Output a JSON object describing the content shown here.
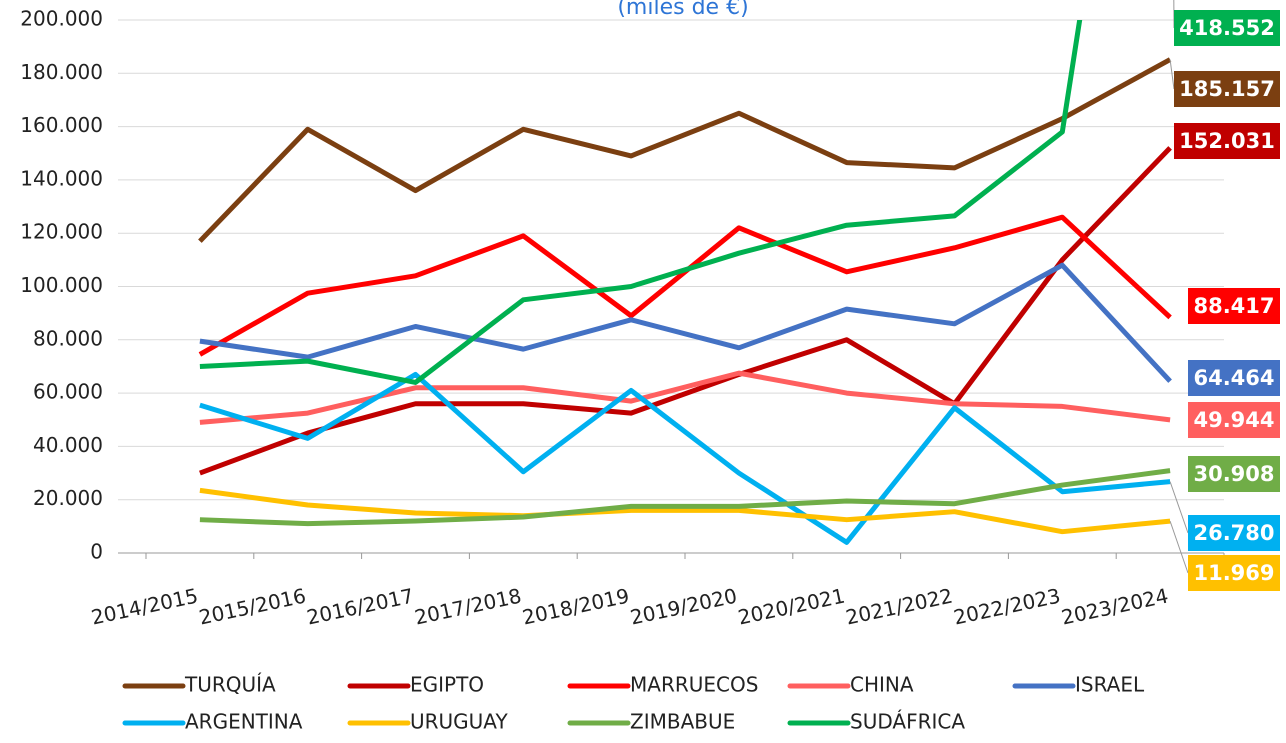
{
  "chart_data": {
    "type": "line",
    "subtitle": "(miles de €)",
    "categories": [
      "2014/2015",
      "2015/2016",
      "2016/2017",
      "2017/2018",
      "2018/2019",
      "2019/2020",
      "2020/2021",
      "2021/2022",
      "2022/2023",
      "2023/2024"
    ],
    "ylim": [
      0,
      200000
    ],
    "yticks": [
      0,
      {
        "value": 20000,
        "label": "20.000"
      },
      {
        "value": 40000,
        "label": "40.000"
      },
      {
        "value": 60000,
        "label": "60.000"
      },
      {
        "value": 80000,
        "label": "80.000"
      },
      {
        "value": 100000,
        "label": "100.000"
      },
      {
        "value": 120000,
        "label": "120.000"
      },
      {
        "value": 140000,
        "label": "140.000"
      },
      {
        "value": 160000,
        "label": "160.000"
      },
      {
        "value": 180000,
        "label": "180.000"
      },
      {
        "value": 200000,
        "label": "200.000"
      }
    ],
    "grid": true,
    "series": [
      {
        "name": "TURQUÍA",
        "color": "#7b3f11",
        "values": [
          117000,
          159000,
          136000,
          159000,
          149000,
          165000,
          146500,
          144500,
          163000,
          185157
        ],
        "value_labels": [
          null,
          null,
          null,
          null,
          null,
          null,
          null,
          null,
          null,
          "185.157"
        ]
      },
      {
        "name": "EGIPTO",
        "color": "#c00000",
        "values": [
          30000,
          45000,
          56000,
          56000,
          52500,
          67000,
          80000,
          56000,
          110000,
          152031
        ],
        "value_labels": [
          null,
          null,
          null,
          null,
          null,
          null,
          null,
          null,
          null,
          "152.031"
        ]
      },
      {
        "name": "MARRUECOS",
        "color": "#ff0000",
        "values": [
          74500,
          97500,
          104000,
          119000,
          89000,
          122000,
          105500,
          114500,
          126000,
          88417
        ],
        "value_labels": [
          null,
          null,
          null,
          null,
          null,
          null,
          null,
          null,
          null,
          "88.417"
        ]
      },
      {
        "name": "CHINA",
        "color": "#ff5f5f",
        "values": [
          49000,
          52500,
          62000,
          62000,
          57000,
          67500,
          60000,
          56000,
          55000,
          49944
        ],
        "value_labels": [
          null,
          null,
          null,
          null,
          null,
          null,
          null,
          null,
          null,
          "49.944"
        ]
      },
      {
        "name": "ISRAEL",
        "color": "#4472c4",
        "values": [
          79500,
          73500,
          85000,
          76500,
          87500,
          77000,
          91500,
          86000,
          108000,
          64464
        ],
        "value_labels": [
          null,
          null,
          null,
          null,
          null,
          null,
          null,
          null,
          null,
          "64.464"
        ]
      },
      {
        "name": "ARGENTINA",
        "color": "#00b0f0",
        "values": [
          55500,
          43000,
          67000,
          30500,
          61000,
          30000,
          4000,
          54500,
          23000,
          26780
        ],
        "value_labels": [
          null,
          null,
          null,
          null,
          null,
          null,
          null,
          null,
          null,
          "26.780"
        ]
      },
      {
        "name": "URUGUAY",
        "color": "#ffc000",
        "values": [
          23500,
          18000,
          15000,
          14000,
          16000,
          16000,
          12500,
          15500,
          8000,
          11969
        ],
        "value_labels": [
          null,
          null,
          null,
          null,
          null,
          null,
          null,
          null,
          null,
          "11.969"
        ]
      },
      {
        "name": "ZIMBABUE",
        "color": "#70ad47",
        "values": [
          12500,
          11000,
          12000,
          13500,
          17500,
          17500,
          19500,
          18500,
          25500,
          30908
        ],
        "value_labels": [
          null,
          null,
          null,
          null,
          null,
          null,
          null,
          null,
          null,
          "30.908"
        ]
      },
      {
        "name": "SUDÁFRICA",
        "color": "#00b050",
        "values": [
          70000,
          72000,
          64000,
          95000,
          100000,
          112500,
          123000,
          126500,
          158000,
          418552
        ],
        "value_labels": [
          null,
          null,
          null,
          null,
          null,
          null,
          null,
          null,
          null,
          "418.552"
        ]
      }
    ]
  }
}
